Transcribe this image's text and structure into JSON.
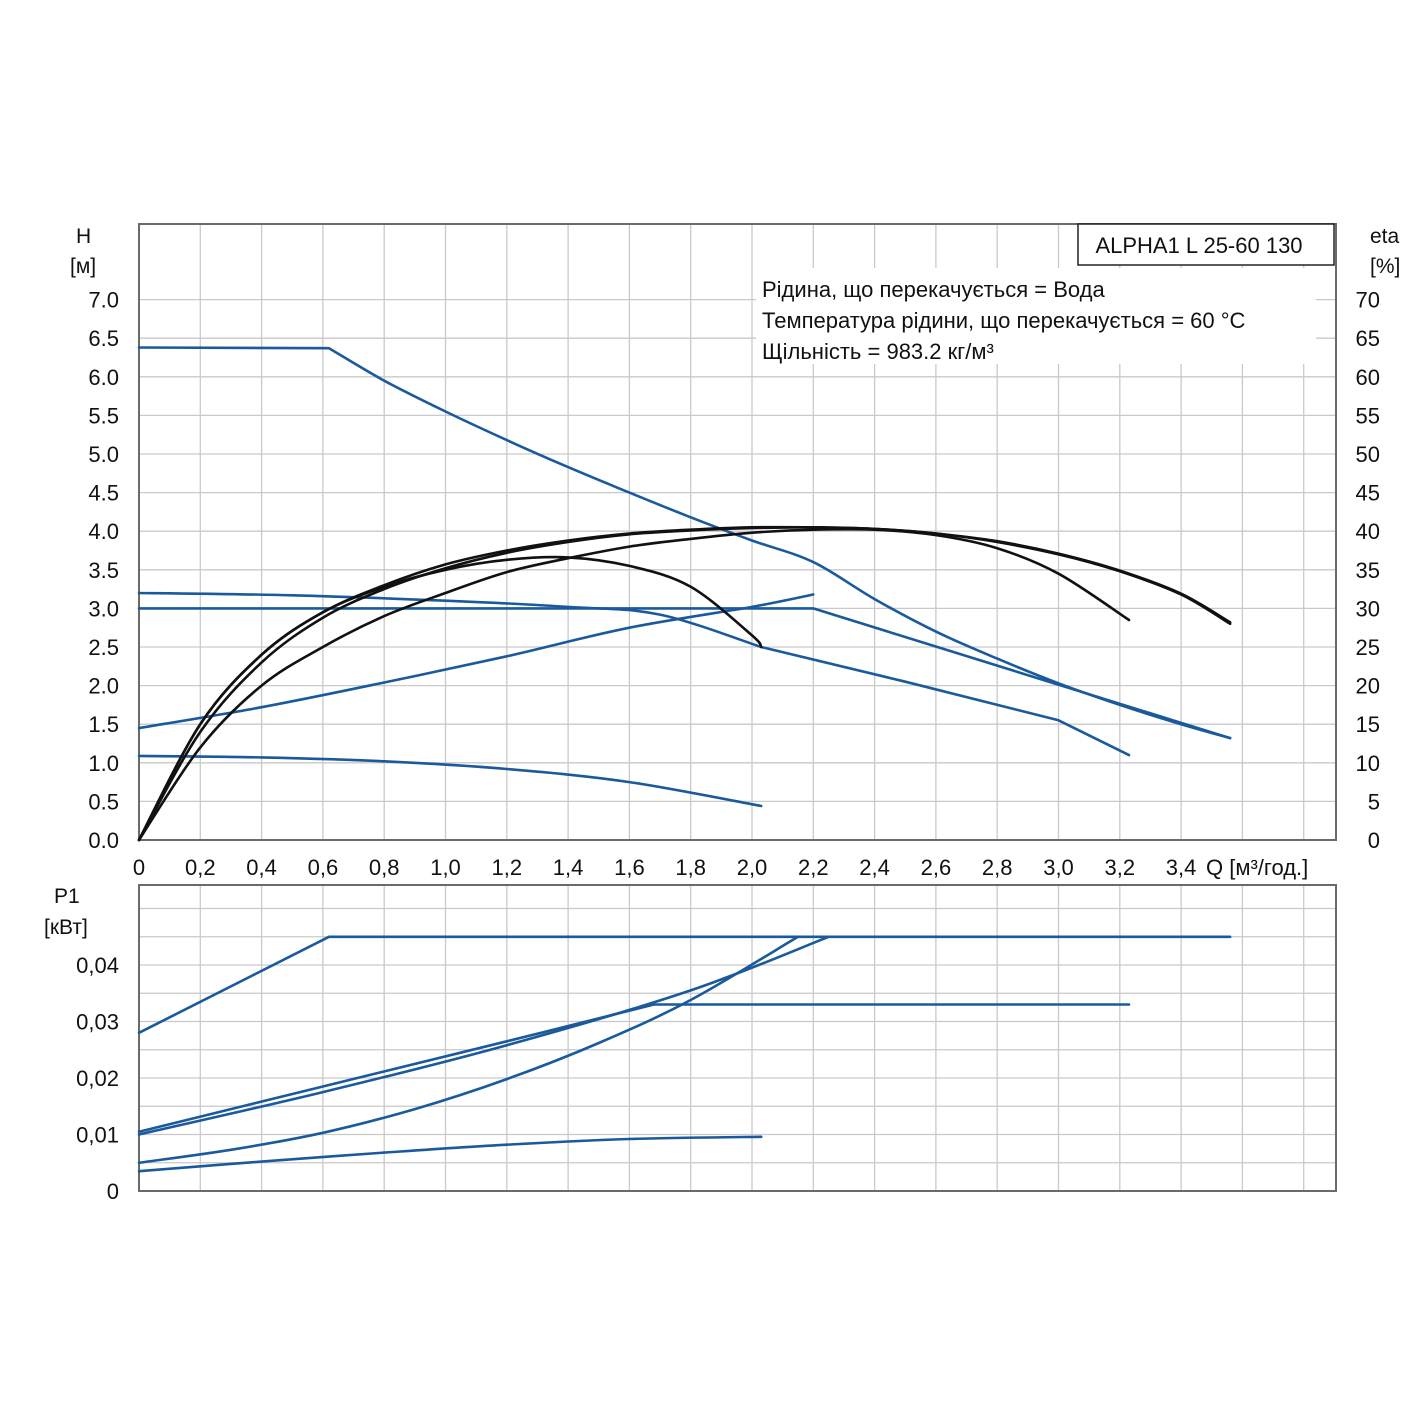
{
  "chart_data": [
    {
      "type": "line",
      "title": "ALPHA1 L 25-60 130",
      "annotations": [
        "Рідина, що перекачується = Вода",
        "Температура рідини, що перекачується = 60 °C",
        "Щільність = 983.2 кг/м³"
      ],
      "xlabel": "Q [м³/год.]",
      "xlim": [
        0,
        3.9
      ],
      "xticks": [
        "0",
        "0,2",
        "0,4",
        "0,6",
        "0,8",
        "1,0",
        "1,2",
        "1,4",
        "1,6",
        "1,8",
        "2,0",
        "2,2",
        "2,4",
        "2,6",
        "2,8",
        "3,0",
        "3,2",
        "3,4"
      ],
      "ylabel": "H",
      "yunit": "[м]",
      "ylim": [
        0,
        7.5
      ],
      "yticks": [
        "0.0",
        "0.5",
        "1.0",
        "1.5",
        "2.0",
        "2.5",
        "3.0",
        "3.5",
        "4.0",
        "4.5",
        "5.0",
        "5.5",
        "6.0",
        "6.5",
        "7.0"
      ],
      "y2label": "eta",
      "y2unit": "[%]",
      "y2lim": [
        0,
        75
      ],
      "y2ticks": [
        "0",
        "5",
        "10",
        "15",
        "20",
        "25",
        "30",
        "35",
        "40",
        "45",
        "50",
        "55",
        "60",
        "65",
        "70"
      ],
      "grid": true,
      "colors": {
        "head": "#1a5a9c",
        "efficiency": "#111111"
      },
      "series": [
        {
          "axis": "H",
          "x": [
            0,
            0.62,
            0.8,
            1.0,
            1.2,
            1.4,
            1.6,
            1.8,
            2.0,
            2.2,
            2.4,
            2.6,
            2.8,
            3.0,
            3.2,
            3.4,
            3.56
          ],
          "y": [
            6.38,
            6.37,
            5.95,
            5.55,
            5.18,
            4.83,
            4.5,
            4.18,
            3.88,
            3.6,
            3.12,
            2.7,
            2.35,
            2.03,
            1.75,
            1.5,
            1.32
          ]
        },
        {
          "axis": "H",
          "x": [
            0,
            0.4,
            0.8,
            1.2,
            1.6,
            2.0,
            2.2
          ],
          "y": [
            1.45,
            1.72,
            2.04,
            2.38,
            2.75,
            3.02,
            3.18
          ]
        },
        {
          "axis": "H",
          "x": [
            0,
            0.5,
            1.0,
            1.5,
            2.0,
            2.2,
            3.56
          ],
          "y": [
            3.0,
            3.0,
            3.0,
            3.0,
            3.0,
            3.0,
            1.32
          ]
        },
        {
          "axis": "H",
          "x": [
            0,
            0.5,
            1.0,
            1.4,
            1.7,
            2.03,
            2.5,
            3.0,
            3.23
          ],
          "y": [
            3.2,
            3.17,
            3.1,
            3.02,
            2.92,
            2.5,
            2.05,
            1.55,
            1.1
          ]
        },
        {
          "axis": "H",
          "x": [
            0,
            0.4,
            0.8,
            1.2,
            1.6,
            2.03
          ],
          "y": [
            1.09,
            1.07,
            1.02,
            0.92,
            0.75,
            0.44
          ]
        },
        {
          "axis": "eta",
          "x": [
            0,
            0.2,
            0.4,
            0.6,
            0.8,
            1.0,
            1.2,
            1.4,
            1.6,
            1.8,
            2.0,
            2.03
          ],
          "y": [
            0,
            15,
            24,
            29.5,
            32.8,
            35,
            36.3,
            36.6,
            35.5,
            32.8,
            26.5,
            25
          ]
        },
        {
          "axis": "eta",
          "x": [
            0,
            0.2,
            0.4,
            0.6,
            0.8,
            1.0,
            1.2,
            1.4,
            1.6,
            1.8,
            2.0,
            2.2,
            2.4,
            2.6,
            2.8,
            3.0,
            3.23
          ],
          "y": [
            0,
            12,
            20,
            25,
            29,
            32,
            34.7,
            36.5,
            38,
            39,
            39.8,
            40.2,
            40.2,
            39.5,
            37.8,
            34.5,
            28.5
          ]
        },
        {
          "axis": "eta",
          "x": [
            0,
            0.2,
            0.4,
            0.6,
            0.8,
            1.0,
            1.2,
            1.4,
            1.6,
            1.8,
            2.0,
            2.2,
            2.4,
            2.6,
            2.8,
            3.0,
            3.2,
            3.4,
            3.56
          ],
          "y": [
            0,
            15,
            24,
            29.5,
            33,
            35.7,
            37.5,
            38.8,
            39.7,
            40.2,
            40.5,
            40.5,
            40.3,
            39.7,
            38.6,
            37,
            34.8,
            31.8,
            28
          ]
        },
        {
          "axis": "eta",
          "x": [
            0,
            0.2,
            0.4,
            0.6,
            0.8,
            1.0,
            1.2,
            1.4,
            1.6,
            1.8,
            2.0,
            2.2,
            2.4,
            2.6,
            2.8,
            3.0,
            3.2,
            3.4,
            3.56
          ],
          "y": [
            0,
            14,
            23,
            28.8,
            32.5,
            35.2,
            37.2,
            38.6,
            39.6,
            40.1,
            40.4,
            40.5,
            40.3,
            39.7,
            38.7,
            37.1,
            34.9,
            31.9,
            28.2
          ]
        }
      ]
    },
    {
      "type": "line",
      "xlim": [
        0,
        3.9
      ],
      "ylabel": "P1",
      "yunit": "[кВт]",
      "ylim": [
        0,
        0.053
      ],
      "yticks": [
        "0",
        "0,01",
        "0,02",
        "0,03",
        "0,04"
      ],
      "grid": true,
      "series": [
        {
          "x": [
            0,
            0.62,
            3.56
          ],
          "y": [
            0.028,
            0.045,
            0.045
          ]
        },
        {
          "x": [
            0,
            0.6,
            1.2,
            1.68,
            3.23
          ],
          "y": [
            0.0105,
            0.0185,
            0.0265,
            0.033,
            0.033
          ]
        },
        {
          "x": [
            0,
            0.6,
            1.2,
            1.8,
            2.25
          ],
          "y": [
            0.01,
            0.0175,
            0.0258,
            0.0355,
            0.045
          ]
        },
        {
          "x": [
            0,
            0.3,
            0.6,
            0.9,
            1.2,
            1.5,
            1.8,
            2.15
          ],
          "y": [
            0.005,
            0.0073,
            0.0103,
            0.0145,
            0.0198,
            0.0262,
            0.0338,
            0.045
          ]
        },
        {
          "x": [
            0,
            0.4,
            0.8,
            1.2,
            1.6,
            2.03
          ],
          "y": [
            0.0035,
            0.0052,
            0.0068,
            0.0082,
            0.0092,
            0.0096
          ]
        }
      ]
    }
  ]
}
